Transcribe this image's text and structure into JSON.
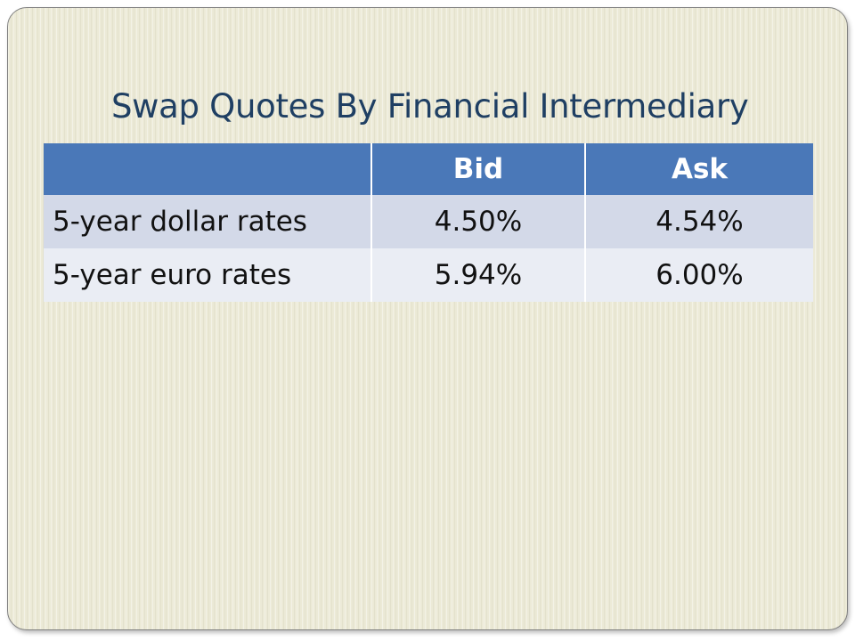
{
  "slide": {
    "title": "Swap Quotes By Financial Intermediary"
  },
  "table": {
    "headers": [
      "",
      "Bid",
      "Ask"
    ],
    "rows": [
      {
        "label": "5-year dollar rates",
        "bid": "4.50%",
        "ask": "4.54%"
      },
      {
        "label": "5-year euro rates",
        "bid": "5.94%",
        "ask": "6.00%"
      }
    ]
  },
  "colors": {
    "title": "#1f3f63",
    "header": "#4a78b8",
    "row_odd": "#d3d9e8",
    "row_even": "#eaedf4",
    "background": "#ecead7"
  }
}
